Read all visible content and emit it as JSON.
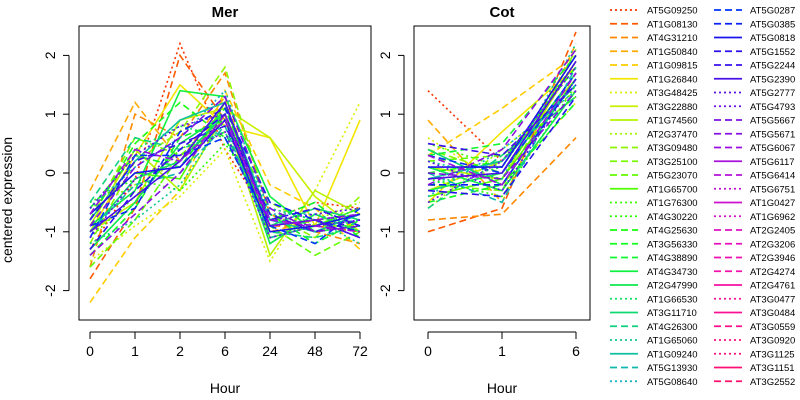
{
  "chart_data": {
    "type": "line",
    "ylabel": "centered expression",
    "ylim": [
      -2.5,
      2.5
    ],
    "yticks": [
      -2,
      -1,
      0,
      1,
      2
    ],
    "grid": false,
    "legend_placement": "right",
    "panels": [
      {
        "title": "Mer",
        "xlabel": "Hour",
        "x": [
          "0",
          "1",
          "2",
          "6",
          "24",
          "48",
          "72"
        ],
        "series_values": [
          [
            -1.3,
            -0.1,
            2.2,
            0.4,
            -0.8,
            -0.5,
            -0.6
          ],
          [
            -1.8,
            -0.6,
            2.0,
            0.9,
            -0.9,
            -0.9,
            -1.0
          ],
          [
            -1.6,
            1.0,
            0.6,
            1.7,
            -0.7,
            -1.0,
            -1.2
          ],
          [
            -0.3,
            1.2,
            0.2,
            1.3,
            -1.0,
            -0.8,
            -0.9
          ],
          [
            -2.2,
            -1.1,
            -0.3,
            1.4,
            -0.2,
            -0.6,
            -1.3
          ],
          [
            -1.0,
            0.3,
            1.5,
            0.8,
            0.6,
            -0.9,
            0.9
          ],
          [
            -1.5,
            -0.9,
            -0.4,
            0.4,
            -1.5,
            -0.3,
            1.2
          ],
          [
            -1.0,
            -0.5,
            0.9,
            1.1,
            0.6,
            -0.4,
            -1.0
          ],
          [
            -0.9,
            0.4,
            -0.3,
            1.0,
            -1.4,
            -0.3,
            -0.7
          ],
          [
            -0.6,
            -0.2,
            0.2,
            1.0,
            -0.9,
            -0.8,
            -0.5
          ],
          [
            -1.2,
            0.2,
            0.7,
            1.8,
            -0.7,
            -1.1,
            -0.4
          ],
          [
            -0.8,
            0.6,
            0.3,
            0.9,
            -0.5,
            -0.9,
            -0.9
          ],
          [
            -1.6,
            -0.8,
            0.3,
            0.7,
            -0.9,
            -1.4,
            -1.0
          ],
          [
            -0.7,
            0.0,
            -0.1,
            1.2,
            -1.1,
            -0.9,
            -0.6
          ],
          [
            -1.1,
            -0.4,
            0.4,
            0.8,
            -0.8,
            -1.0,
            -0.8
          ],
          [
            -0.5,
            -0.1,
            -0.3,
            0.5,
            -0.6,
            -0.8,
            -0.7
          ],
          [
            -0.8,
            0.5,
            1.2,
            0.6,
            -0.9,
            -0.8,
            -1.0
          ],
          [
            -1.4,
            -0.6,
            0.6,
            0.9,
            -0.7,
            -1.2,
            -0.8
          ],
          [
            -0.6,
            0.3,
            0.1,
            1.1,
            -0.8,
            -0.5,
            -1.1
          ],
          [
            -0.9,
            -0.3,
            1.4,
            1.3,
            -0.4,
            -1.0,
            -0.9
          ],
          [
            -1.3,
            -0.5,
            0.5,
            1.0,
            -1.2,
            -0.7,
            -1.0
          ],
          [
            -0.7,
            0.4,
            0.8,
            0.6,
            -0.7,
            -0.9,
            -0.6
          ],
          [
            -1.0,
            -0.1,
            0.2,
            1.0,
            -0.9,
            -0.6,
            -0.8
          ],
          [
            -0.5,
            0.6,
            0.4,
            0.7,
            -1.0,
            -1.1,
            -0.9
          ],
          [
            -1.2,
            -0.8,
            -0.2,
            0.9,
            -0.6,
            -0.8,
            -1.2
          ],
          [
            -0.8,
            0.2,
            0.9,
            1.2,
            -0.8,
            -1.0,
            -0.7
          ],
          [
            -1.0,
            -0.2,
            0.0,
            0.8,
            -1.1,
            -0.9,
            -0.8
          ],
          [
            -0.6,
            0.1,
            0.6,
            1.4,
            -0.7,
            -0.7,
            -0.9
          ],
          [
            -1.1,
            0.3,
            0.3,
            0.6,
            -0.9,
            -1.2,
            -0.6
          ],
          [
            -0.9,
            -0.6,
            0.7,
            1.1,
            -0.5,
            -0.8,
            -1.0
          ],
          [
            -0.7,
            0.0,
            0.1,
            0.9,
            -1.0,
            -0.9,
            -0.7
          ],
          [
            -1.3,
            -0.3,
            0.4,
            1.0,
            -0.8,
            -0.6,
            -0.9
          ],
          [
            -0.8,
            0.2,
            0.5,
            0.8,
            -0.7,
            -1.0,
            -0.8
          ],
          [
            -1.0,
            -0.4,
            0.2,
            1.2,
            -0.9,
            -0.8,
            -1.1
          ],
          [
            -0.6,
            0.3,
            0.8,
            1.0,
            -0.8,
            -0.7,
            -0.6
          ],
          [
            -1.1,
            -0.1,
            0.3,
            0.7,
            -1.1,
            -0.9,
            -0.8
          ],
          [
            -0.9,
            0.1,
            0.6,
            1.3,
            -0.6,
            -1.0,
            -0.9
          ],
          [
            -1.4,
            -0.7,
            0.0,
            1.0,
            -0.9,
            -0.8,
            -0.7
          ],
          [
            -0.7,
            0.4,
            0.2,
            0.9,
            -0.8,
            -0.9,
            -1.0
          ]
        ]
      },
      {
        "title": "Cot",
        "xlabel": "Hour",
        "x": [
          "0",
          "1",
          "6"
        ],
        "series_values": [
          [
            1.4,
            0.2,
            1.5
          ],
          [
            -1.0,
            -0.6,
            2.4
          ],
          [
            -0.8,
            -0.7,
            0.6
          ],
          [
            0.9,
            -0.5,
            2.2
          ],
          [
            0.3,
            1.1,
            2.0
          ],
          [
            -0.5,
            0.7,
            1.8
          ],
          [
            0.6,
            -0.2,
            1.2
          ],
          [
            -0.3,
            0.2,
            1.6
          ],
          [
            0.1,
            -0.1,
            1.9
          ],
          [
            -0.6,
            0.4,
            1.4
          ],
          [
            0.4,
            0.0,
            1.7
          ],
          [
            -0.2,
            -0.3,
            2.1
          ],
          [
            0.2,
            0.3,
            1.3
          ],
          [
            -0.4,
            -0.1,
            1.6
          ],
          [
            0.5,
            0.1,
            1.9
          ],
          [
            -0.1,
            -0.4,
            1.5
          ],
          [
            0.0,
            0.2,
            1.8
          ],
          [
            -0.5,
            -0.2,
            1.2
          ],
          [
            0.3,
            0.5,
            2.0
          ],
          [
            -0.3,
            0.0,
            1.7
          ],
          [
            0.1,
            -0.3,
            1.4
          ],
          [
            -0.2,
            0.1,
            1.9
          ],
          [
            0.4,
            -0.2,
            1.6
          ],
          [
            -0.6,
            0.3,
            1.3
          ],
          [
            0.2,
            -0.1,
            2.2
          ],
          [
            -0.1,
            0.2,
            1.5
          ],
          [
            0.0,
            -0.5,
            1.8
          ],
          [
            -0.4,
            0.4,
            1.4
          ],
          [
            0.3,
            0.0,
            1.7
          ],
          [
            -0.2,
            -0.2,
            1.6
          ],
          [
            0.1,
            0.1,
            2.0
          ],
          [
            -0.3,
            -0.4,
            1.3
          ],
          [
            0.5,
            0.3,
            1.5
          ],
          [
            -0.1,
            0.0,
            1.9
          ],
          [
            0.2,
            -0.3,
            1.6
          ],
          [
            -0.5,
            0.2,
            1.8
          ],
          [
            0.0,
            -0.1,
            1.4
          ],
          [
            -0.2,
            0.4,
            2.1
          ],
          [
            0.3,
            -0.2,
            1.7
          ]
        ]
      }
    ],
    "legend": [
      {
        "label": "AT5G09250",
        "color": "#ff3300",
        "dash": "dotted"
      },
      {
        "label": "AT1G08130",
        "color": "#ff5a00",
        "dash": "dashed"
      },
      {
        "label": "AT4G31210",
        "color": "#ff8800",
        "dash": "dashed"
      },
      {
        "label": "AT1G50840",
        "color": "#ffaa00",
        "dash": "dashed"
      },
      {
        "label": "AT1G09815",
        "color": "#ffcc00",
        "dash": "dashed"
      },
      {
        "label": "AT1G26840",
        "color": "#f2e600",
        "dash": "solid"
      },
      {
        "label": "AT3G48425",
        "color": "#ddee00",
        "dash": "dotted"
      },
      {
        "label": "AT3G22880",
        "color": "#c8f000",
        "dash": "solid"
      },
      {
        "label": "AT1G74560",
        "color": "#b4f200",
        "dash": "solid"
      },
      {
        "label": "AT2G37470",
        "color": "#a0f500",
        "dash": "dotted"
      },
      {
        "label": "AT3G09480",
        "color": "#8cf700",
        "dash": "dashed"
      },
      {
        "label": "AT3G25100",
        "color": "#78fa00",
        "dash": "dashed"
      },
      {
        "label": "AT5G23070",
        "color": "#64fc00",
        "dash": "dashed"
      },
      {
        "label": "AT1G65700",
        "color": "#50ff00",
        "dash": "solid"
      },
      {
        "label": "AT1G76300",
        "color": "#3cff00",
        "dash": "dotted"
      },
      {
        "label": "AT4G30220",
        "color": "#2aff00",
        "dash": "dotted"
      },
      {
        "label": "AT4G25630",
        "color": "#1aff10",
        "dash": "dashed"
      },
      {
        "label": "AT3G56330",
        "color": "#10ff20",
        "dash": "dashed"
      },
      {
        "label": "AT4G38890",
        "color": "#10f830",
        "dash": "dashed"
      },
      {
        "label": "AT4G34730",
        "color": "#10f040",
        "dash": "solid"
      },
      {
        "label": "AT2G47990",
        "color": "#10e850",
        "dash": "solid"
      },
      {
        "label": "AT1G66530",
        "color": "#10e060",
        "dash": "dotted"
      },
      {
        "label": "AT3G11710",
        "color": "#10d870",
        "dash": "solid"
      },
      {
        "label": "AT4G26300",
        "color": "#10d080",
        "dash": "dashed"
      },
      {
        "label": "AT1G65060",
        "color": "#10c890",
        "dash": "dotted"
      },
      {
        "label": "AT1G09240",
        "color": "#10c0a0",
        "dash": "solid"
      },
      {
        "label": "AT5G13930",
        "color": "#10b8b0",
        "dash": "dashed"
      },
      {
        "label": "AT5G08640",
        "color": "#10b0c0",
        "dash": "dotted"
      },
      {
        "label": "AT5G0287",
        "color": "#0033ff",
        "dash": "dashed"
      },
      {
        "label": "AT5G0385",
        "color": "#0a22f5",
        "dash": "dashed"
      },
      {
        "label": "AT5G0818",
        "color": "#1a14f0",
        "dash": "solid"
      },
      {
        "label": "AT5G1552",
        "color": "#2a10ee",
        "dash": "dashed"
      },
      {
        "label": "AT5G2244",
        "color": "#3a10ec",
        "dash": "dashed"
      },
      {
        "label": "AT5G2390",
        "color": "#4a10ea",
        "dash": "solid"
      },
      {
        "label": "AT5G2777",
        "color": "#5a10e8",
        "dash": "dotted"
      },
      {
        "label": "AT5G4793",
        "color": "#6a10e6",
        "dash": "dotted"
      },
      {
        "label": "AT5G5667",
        "color": "#7a10e4",
        "dash": "dashed"
      },
      {
        "label": "AT5G5671",
        "color": "#8a10e2",
        "dash": "dashed"
      },
      {
        "label": "AT5G6067",
        "color": "#9a10e0",
        "dash": "dashed"
      },
      {
        "label": "AT5G6117",
        "color": "#a810dc",
        "dash": "solid"
      },
      {
        "label": "AT5G6414",
        "color": "#b410d8",
        "dash": "dashed"
      },
      {
        "label": "AT5G6751",
        "color": "#c010d4",
        "dash": "dotted"
      },
      {
        "label": "AT1G0427",
        "color": "#cc10d0",
        "dash": "solid"
      },
      {
        "label": "AT1G6962",
        "color": "#d810cc",
        "dash": "dotted"
      },
      {
        "label": "AT2G2405",
        "color": "#e010c4",
        "dash": "dashed"
      },
      {
        "label": "AT2G3206",
        "color": "#e810bc",
        "dash": "dashed"
      },
      {
        "label": "AT2G3946",
        "color": "#ee10b4",
        "dash": "dashed"
      },
      {
        "label": "AT2G4274",
        "color": "#f210ac",
        "dash": "dashed"
      },
      {
        "label": "AT2G4761",
        "color": "#f610a4",
        "dash": "solid"
      },
      {
        "label": "AT3G0477",
        "color": "#f8109c",
        "dash": "dotted"
      },
      {
        "label": "AT3G0484",
        "color": "#fa1094",
        "dash": "solid"
      },
      {
        "label": "AT3G0559",
        "color": "#fc108c",
        "dash": "dashed"
      },
      {
        "label": "AT3G0920",
        "color": "#fd1084",
        "dash": "dotted"
      },
      {
        "label": "AT3G1125",
        "color": "#fe107c",
        "dash": "dotted"
      },
      {
        "label": "AT3G1151",
        "color": "#ff1074",
        "dash": "solid"
      },
      {
        "label": "AT3G2552",
        "color": "#ff106c",
        "dash": "dashed"
      }
    ]
  }
}
